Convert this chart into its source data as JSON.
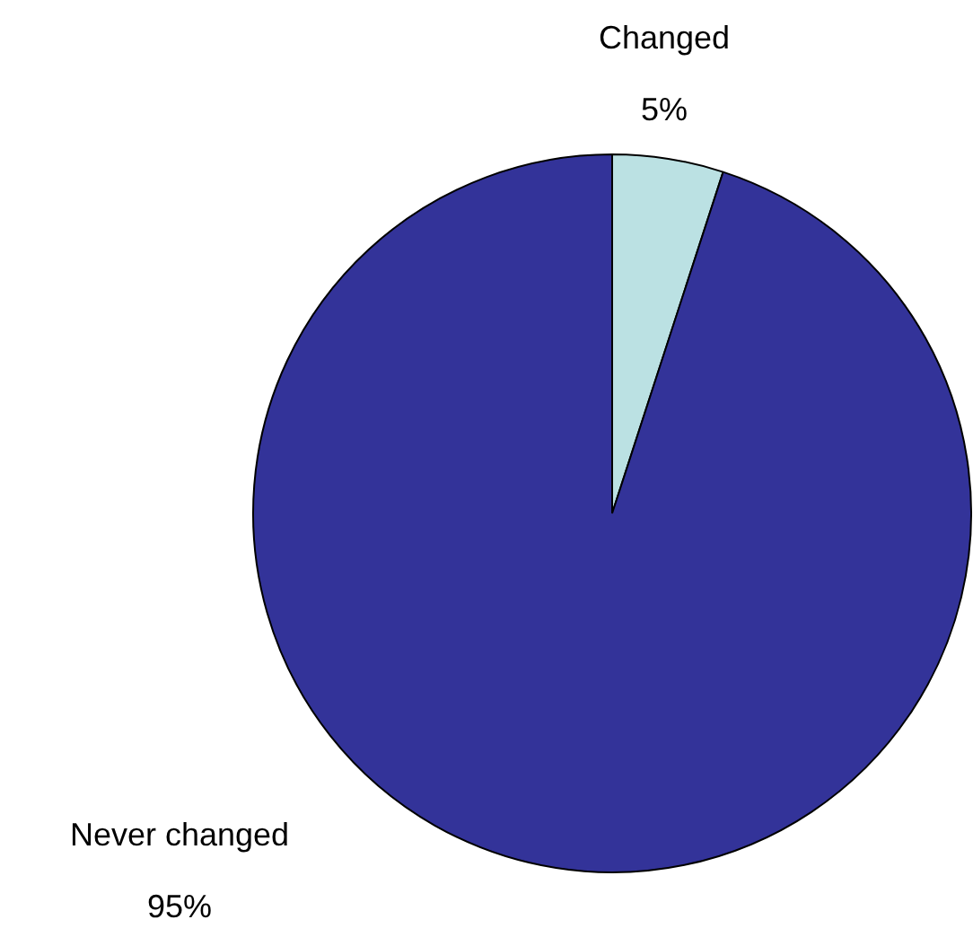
{
  "chart_data": {
    "type": "pie",
    "categories": [
      "Changed",
      "Never changed"
    ],
    "values": [
      5,
      95
    ],
    "colors": [
      "#bbe1e3",
      "#333399"
    ],
    "value_labels": [
      "5%",
      "95%"
    ],
    "legend": false
  }
}
